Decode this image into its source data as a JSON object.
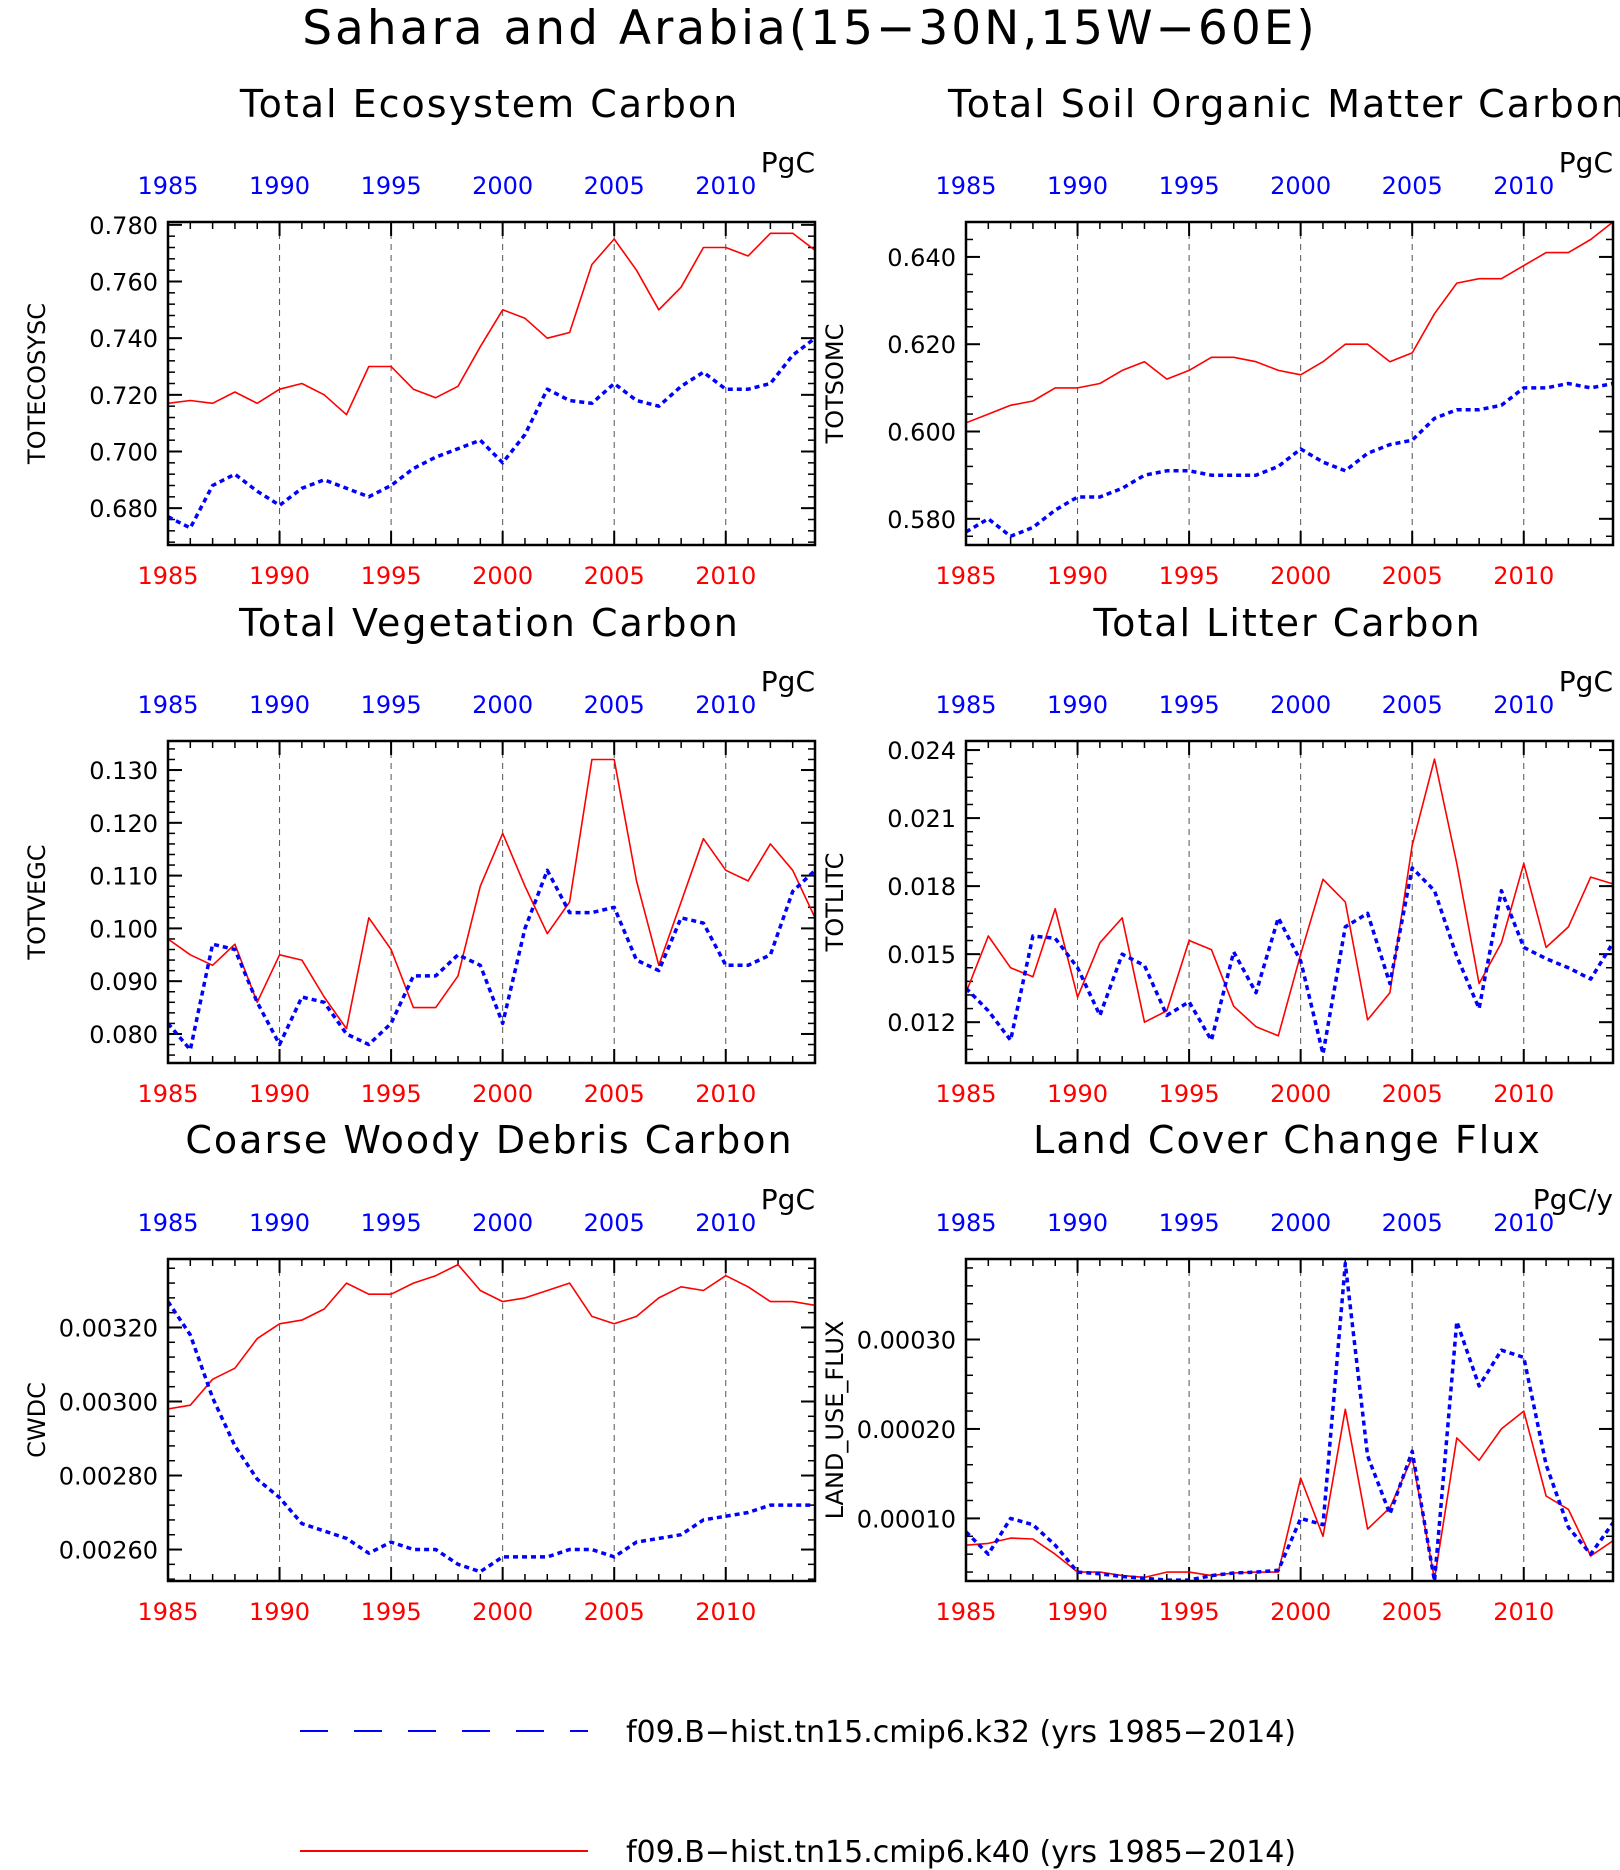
{
  "title": "Sahara and Arabia(15−30N,15W−60E)",
  "colors": {
    "series_a": "#0000ff",
    "series_b": "#ff0000",
    "axis": "#000000",
    "grid": "#555555"
  },
  "legend": [
    {
      "label": "f09.B−hist.tn15.cmip6.k32 (yrs 1985−2014)",
      "color": "#0000ff",
      "style": "dashed"
    },
    {
      "label": "f09.B−hist.tn15.cmip6.k40 (yrs 1985−2014)",
      "color": "#ff0000",
      "style": "solid"
    }
  ],
  "chart_data": [
    {
      "type": "line",
      "title": "Total Ecosystem Carbon",
      "ylabel": "TOTECOSYSC",
      "units": "PgC",
      "xlim": [
        1985,
        2014
      ],
      "ylim": [
        0.667,
        0.781
      ],
      "xticks": [
        "1985",
        "1990",
        "1995",
        "2000",
        "2005",
        "2010"
      ],
      "yticks": [
        "0.680",
        "0.700",
        "0.720",
        "0.740",
        "0.760",
        "0.780"
      ],
      "x": [
        1985,
        1986,
        1987,
        1988,
        1989,
        1990,
        1991,
        1992,
        1993,
        1994,
        1995,
        1996,
        1997,
        1998,
        1999,
        2000,
        2001,
        2002,
        2003,
        2004,
        2005,
        2006,
        2007,
        2008,
        2009,
        2010,
        2011,
        2012,
        2013,
        2014
      ],
      "series": [
        {
          "values": [
            0.677,
            0.673,
            0.688,
            0.692,
            0.686,
            0.681,
            0.687,
            0.69,
            0.687,
            0.684,
            0.688,
            0.694,
            0.698,
            0.701,
            0.704,
            0.696,
            0.706,
            0.722,
            0.718,
            0.717,
            0.724,
            0.718,
            0.716,
            0.723,
            0.728,
            0.722,
            0.722,
            0.724,
            0.734,
            0.74
          ]
        },
        {
          "values": [
            0.717,
            0.718,
            0.717,
            0.721,
            0.717,
            0.722,
            0.724,
            0.72,
            0.713,
            0.73,
            0.73,
            0.722,
            0.719,
            0.723,
            0.737,
            0.75,
            0.747,
            0.74,
            0.742,
            0.766,
            0.775,
            0.764,
            0.75,
            0.758,
            0.772,
            0.772,
            0.769,
            0.777,
            0.777,
            0.771
          ]
        }
      ]
    },
    {
      "type": "line",
      "title": "Total Soil Organic Matter Carbon",
      "ylabel": "TOTSOMC",
      "units": "PgC",
      "xlim": [
        1985,
        2014
      ],
      "ylim": [
        0.574,
        0.648
      ],
      "xticks": [
        "1985",
        "1990",
        "1995",
        "2000",
        "2005",
        "2010"
      ],
      "yticks": [
        "0.580",
        "0.600",
        "0.620",
        "0.640"
      ],
      "x": [
        1985,
        1986,
        1987,
        1988,
        1989,
        1990,
        1991,
        1992,
        1993,
        1994,
        1995,
        1996,
        1997,
        1998,
        1999,
        2000,
        2001,
        2002,
        2003,
        2004,
        2005,
        2006,
        2007,
        2008,
        2009,
        2010,
        2011,
        2012,
        2013,
        2014
      ],
      "series": [
        {
          "values": [
            0.577,
            0.58,
            0.576,
            0.578,
            0.582,
            0.585,
            0.585,
            0.587,
            0.59,
            0.591,
            0.591,
            0.59,
            0.59,
            0.59,
            0.592,
            0.596,
            0.593,
            0.591,
            0.595,
            0.597,
            0.598,
            0.603,
            0.605,
            0.605,
            0.606,
            0.61,
            0.61,
            0.611,
            0.61,
            0.611
          ]
        },
        {
          "values": [
            0.602,
            0.604,
            0.606,
            0.607,
            0.61,
            0.61,
            0.611,
            0.614,
            0.616,
            0.612,
            0.614,
            0.617,
            0.617,
            0.616,
            0.614,
            0.613,
            0.616,
            0.62,
            0.62,
            0.616,
            0.618,
            0.627,
            0.634,
            0.635,
            0.635,
            0.638,
            0.641,
            0.641,
            0.644,
            0.648
          ]
        }
      ]
    },
    {
      "type": "line",
      "title": "Total Vegetation Carbon",
      "ylabel": "TOTVEGC",
      "units": "PgC",
      "xlim": [
        1985,
        2014
      ],
      "ylim": [
        0.0745,
        0.1355
      ],
      "xticks": [
        "1985",
        "1990",
        "1995",
        "2000",
        "2005",
        "2010"
      ],
      "yticks": [
        "0.080",
        "0.090",
        "0.100",
        "0.110",
        "0.120",
        "0.130"
      ],
      "x": [
        1985,
        1986,
        1987,
        1988,
        1989,
        1990,
        1991,
        1992,
        1993,
        1994,
        1995,
        1996,
        1997,
        1998,
        1999,
        2000,
        2001,
        2002,
        2003,
        2004,
        2005,
        2006,
        2007,
        2008,
        2009,
        2010,
        2011,
        2012,
        2013,
        2014
      ],
      "series": [
        {
          "values": [
            0.082,
            0.077,
            0.097,
            0.096,
            0.086,
            0.078,
            0.087,
            0.086,
            0.08,
            0.078,
            0.082,
            0.091,
            0.091,
            0.095,
            0.093,
            0.082,
            0.1,
            0.111,
            0.103,
            0.103,
            0.104,
            0.094,
            0.092,
            0.102,
            0.101,
            0.093,
            0.093,
            0.095,
            0.107,
            0.111
          ]
        },
        {
          "values": [
            0.098,
            0.095,
            0.093,
            0.097,
            0.086,
            0.095,
            0.094,
            0.087,
            0.081,
            0.102,
            0.096,
            0.085,
            0.085,
            0.091,
            0.108,
            0.118,
            0.108,
            0.099,
            0.105,
            0.132,
            0.132,
            0.109,
            0.093,
            0.105,
            0.117,
            0.111,
            0.109,
            0.116,
            0.111,
            0.102
          ]
        }
      ]
    },
    {
      "type": "line",
      "title": "Total Litter Carbon",
      "ylabel": "TOTLITC",
      "units": "PgC",
      "xlim": [
        1985,
        2014
      ],
      "ylim": [
        0.0102,
        0.0244
      ],
      "xticks": [
        "1985",
        "1990",
        "1995",
        "2000",
        "2005",
        "2010"
      ],
      "yticks": [
        "0.012",
        "0.015",
        "0.018",
        "0.021",
        "0.024"
      ],
      "x": [
        1985,
        1986,
        1987,
        1988,
        1989,
        1990,
        1991,
        1992,
        1993,
        1994,
        1995,
        1996,
        1997,
        1998,
        1999,
        2000,
        2001,
        2002,
        2003,
        2004,
        2005,
        2006,
        2007,
        2008,
        2009,
        2010,
        2011,
        2012,
        2013,
        2014
      ],
      "series": [
        {
          "values": [
            0.0135,
            0.0125,
            0.0112,
            0.0158,
            0.0157,
            0.0144,
            0.0123,
            0.015,
            0.0145,
            0.0123,
            0.0129,
            0.0112,
            0.0151,
            0.0133,
            0.0166,
            0.0147,
            0.0106,
            0.0162,
            0.0168,
            0.0137,
            0.0188,
            0.0178,
            0.0149,
            0.0126,
            0.0178,
            0.0153,
            0.0148,
            0.0144,
            0.0139,
            0.0155
          ]
        },
        {
          "values": [
            0.0133,
            0.0158,
            0.0144,
            0.014,
            0.017,
            0.0131,
            0.0155,
            0.0166,
            0.012,
            0.0125,
            0.0156,
            0.0152,
            0.0127,
            0.0118,
            0.0114,
            0.015,
            0.0183,
            0.0173,
            0.0121,
            0.0133,
            0.0198,
            0.0236,
            0.019,
            0.0137,
            0.0155,
            0.019,
            0.0153,
            0.0162,
            0.0184,
            0.0181
          ]
        }
      ]
    },
    {
      "type": "line",
      "title": "Coarse Woody Debris Carbon",
      "ylabel": "CWDC",
      "units": "PgC",
      "xlim": [
        1985,
        2014
      ],
      "ylim": [
        0.002515,
        0.003385
      ],
      "xticks": [
        "1985",
        "1990",
        "1995",
        "2000",
        "2005",
        "2010"
      ],
      "yticks": [
        "0.00260",
        "0.00280",
        "0.00300",
        "0.00320"
      ],
      "x": [
        1985,
        1986,
        1987,
        1988,
        1989,
        1990,
        1991,
        1992,
        1993,
        1994,
        1995,
        1996,
        1997,
        1998,
        1999,
        2000,
        2001,
        2002,
        2003,
        2004,
        2005,
        2006,
        2007,
        2008,
        2009,
        2010,
        2011,
        2012,
        2013,
        2014
      ],
      "series": [
        {
          "values": [
            0.00327,
            0.00318,
            0.00301,
            0.00288,
            0.00279,
            0.00274,
            0.00267,
            0.00265,
            0.00263,
            0.00259,
            0.00262,
            0.0026,
            0.0026,
            0.00256,
            0.00254,
            0.00258,
            0.00258,
            0.00258,
            0.0026,
            0.0026,
            0.00258,
            0.00262,
            0.00263,
            0.00264,
            0.00268,
            0.00269,
            0.0027,
            0.00272,
            0.00272,
            0.00272
          ]
        },
        {
          "values": [
            0.00298,
            0.00299,
            0.00306,
            0.00309,
            0.00317,
            0.00321,
            0.00322,
            0.00325,
            0.00332,
            0.00329,
            0.00329,
            0.00332,
            0.00334,
            0.00337,
            0.0033,
            0.00327,
            0.00328,
            0.0033,
            0.00332,
            0.00323,
            0.00321,
            0.00323,
            0.00328,
            0.00331,
            0.0033,
            0.00334,
            0.00331,
            0.00327,
            0.00327,
            0.00326
          ]
        }
      ]
    },
    {
      "type": "line",
      "title": "Land Cover Change Flux",
      "ylabel": "LAND_USE_FLUX",
      "units": "PgC/y",
      "xlim": [
        1985,
        2014
      ],
      "ylim": [
        3e-05,
        0.00039
      ],
      "xticks": [
        "1985",
        "1990",
        "1995",
        "2000",
        "2005",
        "2010"
      ],
      "yticks": [
        "0.00010",
        "0.00020",
        "0.00030"
      ],
      "x": [
        1985,
        1986,
        1987,
        1988,
        1989,
        1990,
        1991,
        1992,
        1993,
        1994,
        1995,
        1996,
        1997,
        1998,
        1999,
        2000,
        2001,
        2002,
        2003,
        2004,
        2005,
        2006,
        2007,
        2008,
        2009,
        2010,
        2011,
        2012,
        2013,
        2014
      ],
      "series": [
        {
          "values": [
            8.5e-05,
            6e-05,
            0.0001,
            9.3e-05,
            7e-05,
            4e-05,
            3.8e-05,
            3.5e-05,
            3.3e-05,
            3.1e-05,
            3.1e-05,
            3.6e-05,
            3.9e-05,
            4e-05,
            4.2e-05,
            0.0001,
            9.3e-05,
            0.000385,
            0.00017,
            0.000105,
            0.000175,
            3e-05,
            0.00032,
            0.000248,
            0.000288,
            0.00028,
            0.00016,
            9e-05,
            6e-05,
            9.5e-05
          ]
        },
        {
          "values": [
            7e-05,
            7.2e-05,
            7.8e-05,
            7.7e-05,
            6e-05,
            4e-05,
            4e-05,
            3.6e-05,
            3.4e-05,
            4e-05,
            4e-05,
            3.6e-05,
            3.9e-05,
            4e-05,
            4e-05,
            0.000145,
            8e-05,
            0.000222,
            8.8e-05,
            0.000112,
            0.000168,
            3.2e-05,
            0.00019,
            0.000165,
            0.0002,
            0.00022,
            0.000125,
            0.00011,
            5.8e-05,
            7.5e-05
          ]
        }
      ]
    }
  ]
}
